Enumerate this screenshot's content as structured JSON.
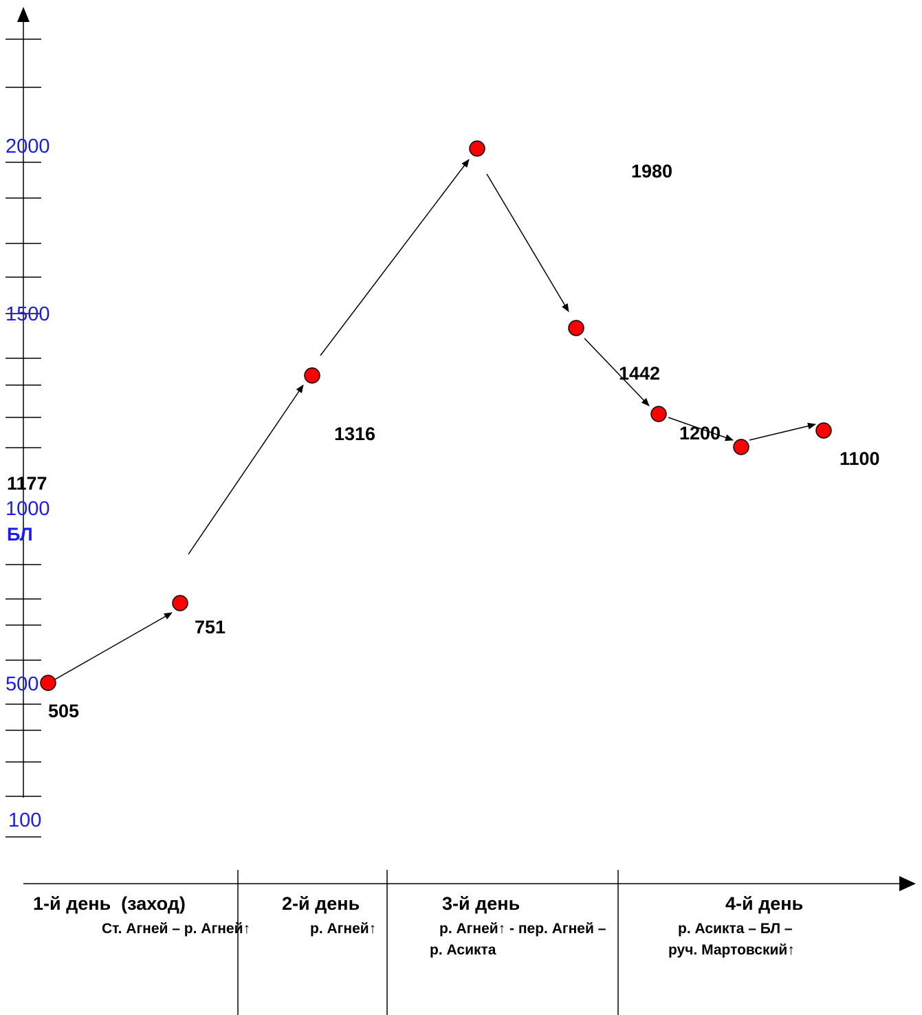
{
  "chart_data": {
    "type": "line",
    "y_tick_labels": [
      "2000",
      "1500",
      "1000",
      "500",
      "100"
    ],
    "y_unit_label": "БЛ",
    "extra_label": "1177",
    "points": [
      {
        "day": 1,
        "value": 505,
        "label": "505"
      },
      {
        "day": 1,
        "value": 751,
        "label": "751"
      },
      {
        "day": 2,
        "value": 1316,
        "label": "1316"
      },
      {
        "day": 3,
        "value": 1980,
        "label": "1980"
      },
      {
        "day": 3,
        "value": 1442,
        "label": "1442"
      },
      {
        "day": 4,
        "value": 1200,
        "label": "1200"
      },
      {
        "day": 4,
        "value": 1100,
        "label": "1100"
      },
      {
        "day": 4,
        "value": 1150,
        "label": ""
      }
    ],
    "days": [
      {
        "label": "1-й день  (заход)",
        "route": [
          "Ст. Агней – р. Агней↑"
        ]
      },
      {
        "label": "2-й день",
        "route": [
          "р. Агней↑"
        ]
      },
      {
        "label": "3-й день",
        "route": [
          "р. Агней↑ - пер. Агней –",
          "р. Асикта"
        ]
      },
      {
        "label": "4-й день",
        "route": [
          "р. Асикта – БЛ –",
          "руч. Мартовский↑"
        ]
      }
    ],
    "colors": {
      "point": "#ff0000",
      "axis_label": "#1a1aff",
      "line": "#000000"
    }
  }
}
